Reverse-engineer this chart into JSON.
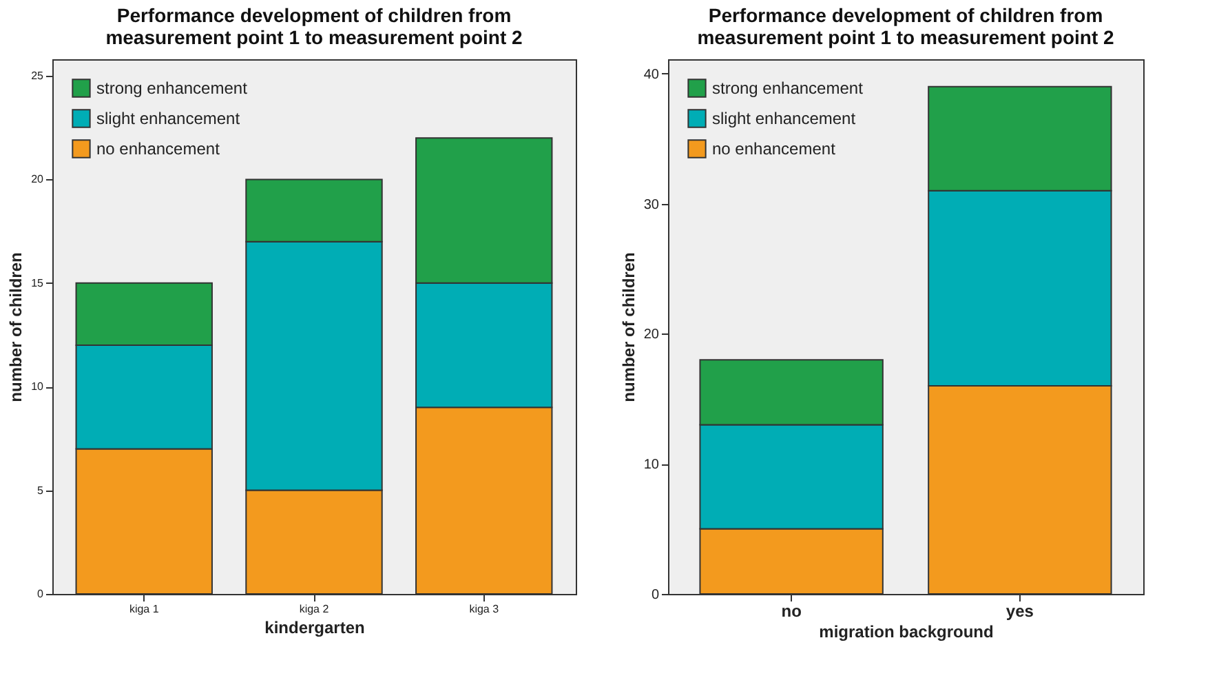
{
  "chart_data": [
    {
      "type": "bar",
      "title": "Performance development of children from\nmeasurement point 1 to measurement point 2",
      "xlabel": "kindergarten",
      "ylabel": "number of children",
      "categories": [
        "kiga 1",
        "kiga 2",
        "kiga 3"
      ],
      "stacked": true,
      "ylim": [
        0,
        25.8
      ],
      "yticks": [
        0,
        5,
        10,
        15,
        20,
        25
      ],
      "grid": false,
      "legend": "top left",
      "series": [
        {
          "name": "no enhancement",
          "color": "#f39a1e",
          "values": [
            7,
            5,
            9
          ]
        },
        {
          "name": "slight enhancement",
          "color": "#00adb5",
          "values": [
            5,
            12,
            6
          ]
        },
        {
          "name": "strong enhancement",
          "color": "#21a04a",
          "values": [
            3,
            3,
            7
          ]
        }
      ]
    },
    {
      "type": "bar",
      "title": "Performance development of children from\nmeasurement point 1 to measurement point 2",
      "xlabel": "migration background",
      "ylabel": "number of children",
      "categories": [
        "no",
        "yes"
      ],
      "stacked": true,
      "ylim": [
        0,
        41.1
      ],
      "yticks": [
        0,
        10,
        20,
        30,
        40
      ],
      "grid": false,
      "legend": "top left",
      "series": [
        {
          "name": "no enhancement",
          "color": "#f39a1e",
          "values": [
            5,
            16
          ]
        },
        {
          "name": "slight enhancement",
          "color": "#00adb5",
          "values": [
            8,
            15
          ]
        },
        {
          "name": "strong enhancement",
          "color": "#21a04a",
          "values": [
            5,
            8
          ]
        }
      ]
    }
  ]
}
